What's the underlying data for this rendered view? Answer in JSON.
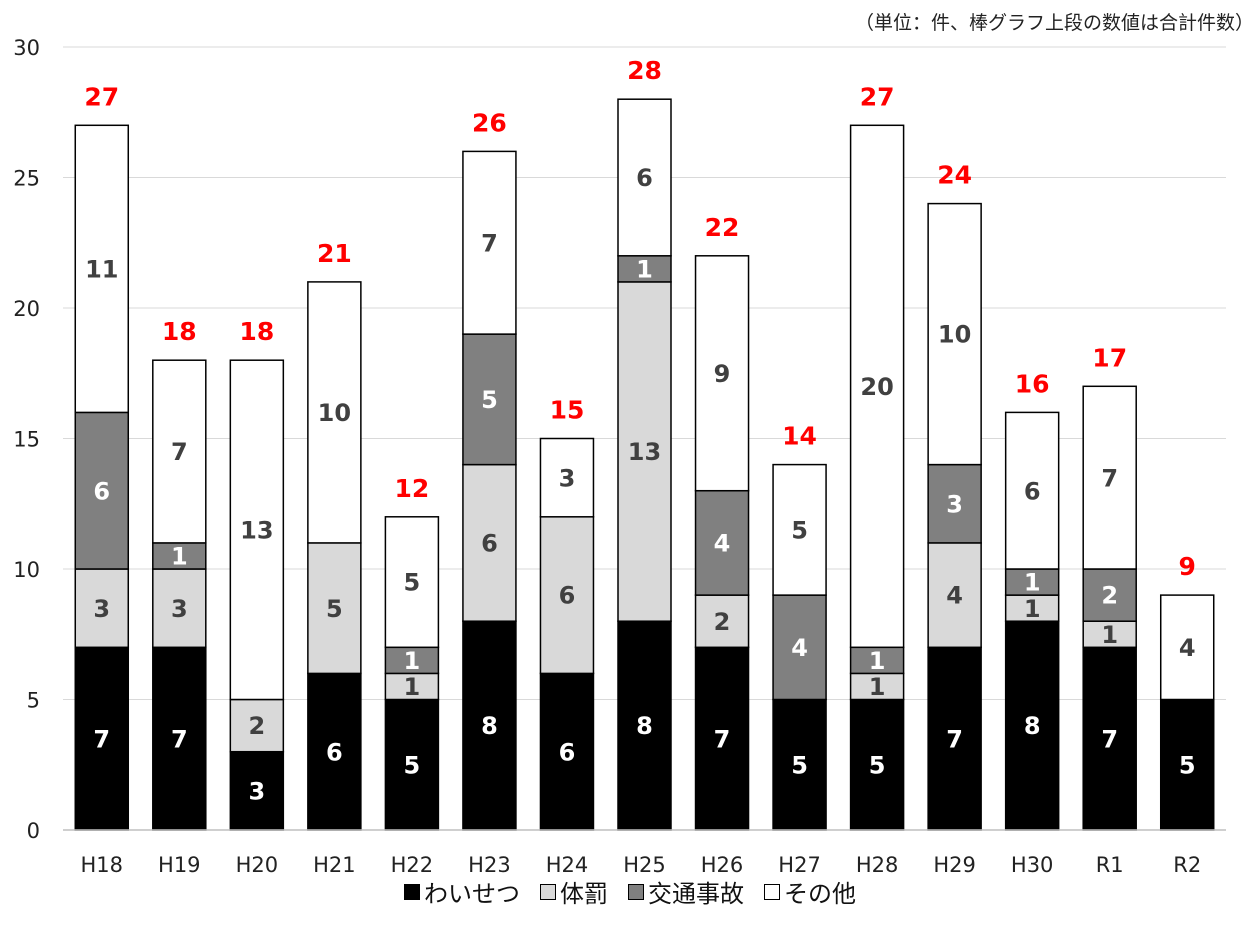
{
  "note": "（単位：件、棒グラフ上段の数値は合計件数）",
  "chart_data": {
    "type": "bar",
    "stacked": true,
    "categories": [
      "H18",
      "H19",
      "H20",
      "H21",
      "H22",
      "H23",
      "H24",
      "H25",
      "H26",
      "H27",
      "H28",
      "H29",
      "H30",
      "R1",
      "R2"
    ],
    "series": [
      {
        "name": "わいせつ",
        "color": "#000000",
        "label_color": "#ffffff",
        "values": [
          7,
          7,
          3,
          6,
          5,
          8,
          6,
          8,
          7,
          5,
          5,
          7,
          8,
          7,
          5
        ]
      },
      {
        "name": "体罰",
        "color": "#d9d9d9",
        "label_color": "#404040",
        "values": [
          3,
          3,
          2,
          5,
          1,
          6,
          6,
          13,
          2,
          0,
          1,
          4,
          1,
          1,
          0
        ]
      },
      {
        "name": "交通事故",
        "color": "#808080",
        "label_color": "#ffffff",
        "values": [
          6,
          1,
          0,
          0,
          1,
          5,
          0,
          1,
          4,
          4,
          1,
          3,
          1,
          2,
          0
        ]
      },
      {
        "name": "その他",
        "color": "#ffffff",
        "label_color": "#404040",
        "values": [
          11,
          7,
          13,
          10,
          5,
          7,
          3,
          6,
          9,
          5,
          20,
          10,
          6,
          7,
          4
        ]
      }
    ],
    "totals": [
      27,
      18,
      18,
      21,
      12,
      26,
      15,
      28,
      22,
      14,
      27,
      24,
      16,
      17,
      9
    ],
    "total_label_color": "#ff0000",
    "ylim": [
      0,
      30
    ],
    "yticks": [
      0,
      5,
      10,
      15,
      20,
      25,
      30
    ],
    "grid": true,
    "legend_position": "bottom"
  }
}
